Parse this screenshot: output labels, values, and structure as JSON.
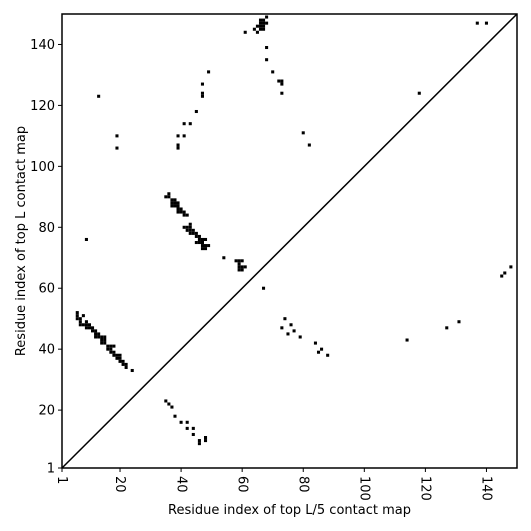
{
  "chart_data": {
    "type": "scatter",
    "title": "",
    "xlabel": "Residue index of top L/5 contact map",
    "ylabel": "Residue index of top L contact map",
    "xlim": [
      1,
      150
    ],
    "ylim": [
      1,
      150
    ],
    "xticks": [
      1,
      20,
      40,
      60,
      80,
      100,
      120,
      140
    ],
    "yticks": [
      1,
      20,
      40,
      60,
      80,
      100,
      120,
      140
    ],
    "grid": false,
    "diagonal_line": true,
    "marker_color": "#000000",
    "series": [
      {
        "name": "",
        "points": [
          [
            6,
            52
          ],
          [
            6,
            51
          ],
          [
            6,
            50
          ],
          [
            7,
            50
          ],
          [
            7,
            49
          ],
          [
            7,
            48
          ],
          [
            8,
            48
          ],
          [
            8,
            51
          ],
          [
            9,
            49
          ],
          [
            9,
            48
          ],
          [
            9,
            47
          ],
          [
            10,
            48
          ],
          [
            10,
            47
          ],
          [
            11,
            47
          ],
          [
            11,
            46
          ],
          [
            12,
            46
          ],
          [
            12,
            45
          ],
          [
            12,
            44
          ],
          [
            13,
            45
          ],
          [
            13,
            44
          ],
          [
            14,
            44
          ],
          [
            14,
            43
          ],
          [
            14,
            42
          ],
          [
            15,
            44
          ],
          [
            15,
            43
          ],
          [
            15,
            42
          ],
          [
            16,
            41
          ],
          [
            16,
            40
          ],
          [
            17,
            41
          ],
          [
            17,
            40
          ],
          [
            17,
            39
          ],
          [
            18,
            41
          ],
          [
            18,
            39
          ],
          [
            18,
            38
          ],
          [
            19,
            38
          ],
          [
            19,
            37
          ],
          [
            20,
            38
          ],
          [
            20,
            37
          ],
          [
            20,
            36
          ],
          [
            21,
            36
          ],
          [
            21,
            35
          ],
          [
            22,
            35
          ],
          [
            22,
            34
          ],
          [
            24,
            33
          ],
          [
            9,
            76
          ],
          [
            13,
            123
          ],
          [
            19,
            110
          ],
          [
            19,
            106
          ],
          [
            35,
            90
          ],
          [
            36,
            91
          ],
          [
            36,
            90
          ],
          [
            37,
            89
          ],
          [
            37,
            88
          ],
          [
            37,
            87
          ],
          [
            38,
            89
          ],
          [
            38,
            88
          ],
          [
            38,
            87
          ],
          [
            39,
            88
          ],
          [
            39,
            87
          ],
          [
            39,
            86
          ],
          [
            39,
            85
          ],
          [
            40,
            86
          ],
          [
            40,
            85
          ],
          [
            41,
            85
          ],
          [
            41,
            84
          ],
          [
            42,
            84
          ],
          [
            41,
            80
          ],
          [
            42,
            80
          ],
          [
            42,
            79
          ],
          [
            43,
            81
          ],
          [
            43,
            80
          ],
          [
            43,
            79
          ],
          [
            43,
            78
          ],
          [
            44,
            79
          ],
          [
            44,
            78
          ],
          [
            45,
            78
          ],
          [
            45,
            77
          ],
          [
            45,
            75
          ],
          [
            46,
            77
          ],
          [
            46,
            76
          ],
          [
            46,
            75
          ],
          [
            47,
            76
          ],
          [
            47,
            75
          ],
          [
            47,
            74
          ],
          [
            47,
            73
          ],
          [
            48,
            76
          ],
          [
            48,
            74
          ],
          [
            48,
            73
          ],
          [
            49,
            74
          ],
          [
            54,
            70
          ],
          [
            58,
            69
          ],
          [
            59,
            69
          ],
          [
            59,
            68
          ],
          [
            59,
            67
          ],
          [
            59,
            66
          ],
          [
            60,
            69
          ],
          [
            60,
            67
          ],
          [
            60,
            66
          ],
          [
            61,
            67
          ],
          [
            67,
            60
          ],
          [
            39,
            110
          ],
          [
            39,
            107
          ],
          [
            39,
            106
          ],
          [
            41,
            114
          ],
          [
            41,
            110
          ],
          [
            43,
            114
          ],
          [
            45,
            118
          ],
          [
            47,
            127
          ],
          [
            47,
            124
          ],
          [
            47,
            123
          ],
          [
            49,
            131
          ],
          [
            61,
            144
          ],
          [
            64,
            145
          ],
          [
            65,
            146
          ],
          [
            65,
            144
          ],
          [
            66,
            148
          ],
          [
            66,
            147
          ],
          [
            66,
            146
          ],
          [
            66,
            145
          ],
          [
            67,
            148
          ],
          [
            67,
            147
          ],
          [
            67,
            146
          ],
          [
            67,
            145
          ],
          [
            68,
            149
          ],
          [
            68,
            139
          ],
          [
            68,
            147
          ],
          [
            68,
            135
          ],
          [
            70,
            131
          ],
          [
            72,
            128
          ],
          [
            73,
            128
          ],
          [
            73,
            127
          ],
          [
            73,
            124
          ],
          [
            80,
            111
          ],
          [
            82,
            107
          ],
          [
            118,
            124
          ],
          [
            137,
            147
          ],
          [
            140,
            147
          ],
          [
            35,
            23
          ],
          [
            36,
            22
          ],
          [
            37,
            21
          ],
          [
            38,
            18
          ],
          [
            40,
            16
          ],
          [
            42,
            16
          ],
          [
            42,
            14
          ],
          [
            44,
            14
          ],
          [
            44,
            12
          ],
          [
            46,
            10
          ],
          [
            46,
            9
          ],
          [
            48,
            11
          ],
          [
            48,
            10
          ],
          [
            73,
            47
          ],
          [
            74,
            50
          ],
          [
            75,
            45
          ],
          [
            76,
            48
          ],
          [
            77,
            46
          ],
          [
            79,
            44
          ],
          [
            84,
            42
          ],
          [
            85,
            39
          ],
          [
            86,
            40
          ],
          [
            88,
            38
          ],
          [
            114,
            43
          ],
          [
            127,
            47
          ],
          [
            131,
            49
          ],
          [
            145,
            64
          ],
          [
            146,
            65
          ],
          [
            148,
            67
          ]
        ]
      }
    ]
  }
}
